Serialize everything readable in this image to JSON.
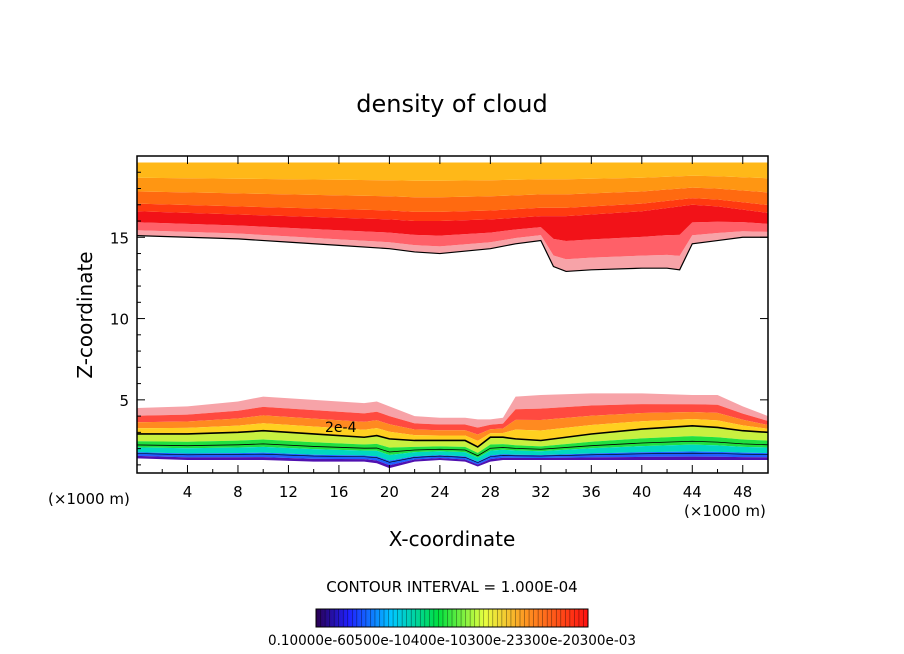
{
  "chart_data": {
    "type": "heatmap",
    "title": "density of cloud",
    "xlabel": "X-coordinate",
    "ylabel": "Z-coordinate",
    "x_unit": "(×1000 m)",
    "y_unit": "(×1000 m)",
    "xlim": [
      0,
      50
    ],
    "ylim": [
      0.5,
      20
    ],
    "x_ticks": [
      4,
      8,
      12,
      16,
      20,
      24,
      28,
      32,
      36,
      40,
      44,
      48
    ],
    "y_ticks": [
      5,
      10,
      15
    ],
    "grid": false,
    "contour_interval_text": "CONTOUR INTERVAL = 1.000E-04",
    "contour_label": "2e-4",
    "colorbar": {
      "min": 0.0001,
      "max": 0.001,
      "label_text": "0.10000e-60500e-10400e-10300e-23300e-20300e-03"
    },
    "upper_layer": {
      "x": [
        0,
        4,
        8,
        12,
        16,
        20,
        22,
        24,
        28,
        30,
        32,
        33,
        34,
        36,
        40,
        42,
        43,
        44,
        46,
        48,
        50
      ],
      "top": [
        19.6,
        19.6,
        19.6,
        19.6,
        19.6,
        19.6,
        19.6,
        19.6,
        19.6,
        19.6,
        19.6,
        19.6,
        19.6,
        19.6,
        19.6,
        19.6,
        19.6,
        19.6,
        19.6,
        19.6,
        19.6
      ],
      "bottom": [
        15.1,
        15.0,
        14.9,
        14.7,
        14.5,
        14.3,
        14.1,
        14.0,
        14.3,
        14.6,
        14.8,
        13.2,
        12.9,
        13.0,
        13.1,
        13.1,
        13.0,
        14.6,
        14.8,
        15.0,
        15.0
      ],
      "core_z": [
        16.6,
        16.5,
        16.4,
        16.3,
        16.2,
        16.1,
        16.0,
        16.0,
        16.1,
        16.2,
        16.3,
        16.3,
        16.3,
        16.4,
        16.6,
        16.8,
        16.9,
        17.0,
        16.9,
        16.7,
        16.5
      ]
    },
    "lower_layer": {
      "x": [
        0,
        4,
        8,
        10,
        14,
        18,
        19,
        20,
        22,
        24,
        26,
        27,
        28,
        29,
        30,
        32,
        36,
        40,
        44,
        46,
        48,
        50
      ],
      "top": [
        4.5,
        4.6,
        4.9,
        5.2,
        5.0,
        4.8,
        4.9,
        4.6,
        4.0,
        3.9,
        3.9,
        3.8,
        3.8,
        3.9,
        5.2,
        5.3,
        5.4,
        5.4,
        5.3,
        5.3,
        4.6,
        4.0
      ],
      "contour_2e4": [
        2.9,
        2.9,
        3.0,
        3.1,
        2.9,
        2.7,
        2.8,
        2.6,
        2.5,
        2.5,
        2.5,
        2.1,
        2.7,
        2.7,
        2.6,
        2.5,
        2.9,
        3.2,
        3.4,
        3.3,
        3.1,
        3.0
      ],
      "bottom": [
        1.4,
        1.3,
        1.3,
        1.3,
        1.2,
        1.2,
        1.1,
        0.8,
        1.2,
        1.3,
        1.2,
        0.9,
        1.2,
        1.3,
        1.3,
        1.3,
        1.3,
        1.3,
        1.3,
        1.3,
        1.3,
        1.3
      ]
    }
  }
}
